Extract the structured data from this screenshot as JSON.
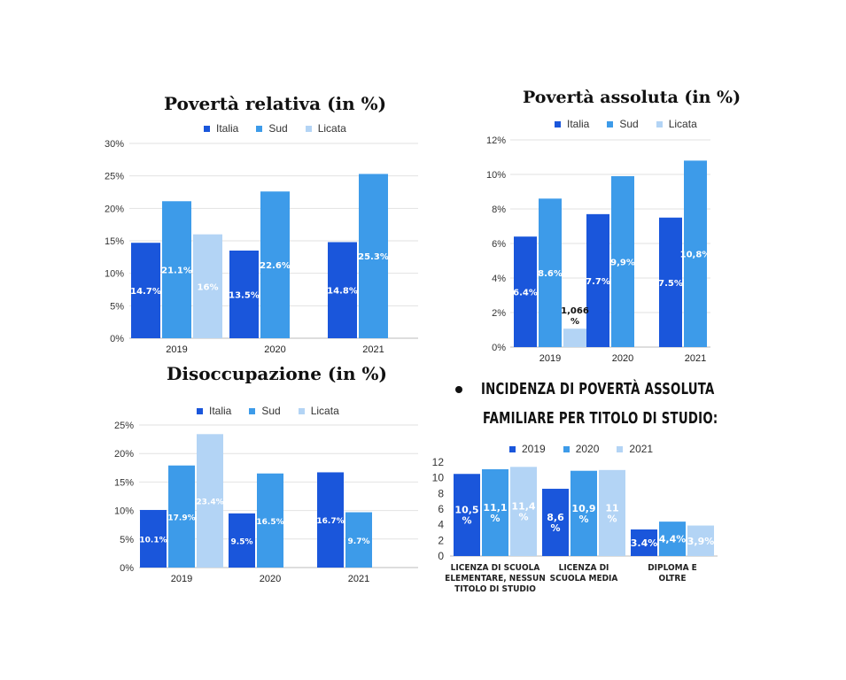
{
  "colors": {
    "italia": "#1a56db",
    "sud": "#3d9be9",
    "licata": "#b3d4f5",
    "grid": "#e2e2e2",
    "axis": "#bbbbbb",
    "label": "#ffffff"
  },
  "chart_data": [
    {
      "type": "bar",
      "title": "Povertà relativa (in %)",
      "categories": [
        "2019",
        "2020",
        "2021"
      ],
      "yticks": [
        "0%",
        "5%",
        "10%",
        "15%",
        "20%",
        "25%",
        "30%"
      ],
      "ylim": [
        0,
        30
      ],
      "legend_position": "top-center",
      "grid": true,
      "series": [
        {
          "name": "Italia",
          "color": "#1a56db",
          "values": [
            14.7,
            13.5,
            14.8
          ],
          "labels": [
            "14.7%",
            "13.5%",
            "14.8%"
          ]
        },
        {
          "name": "Sud",
          "color": "#3d9be9",
          "values": [
            21.1,
            22.6,
            25.3
          ],
          "labels": [
            "21.1%",
            "22.6%",
            "25.3%"
          ]
        },
        {
          "name": "Licata",
          "color": "#b3d4f5",
          "values": [
            16,
            null,
            null
          ],
          "labels": [
            "16%",
            "",
            ""
          ]
        }
      ]
    },
    {
      "type": "bar",
      "title": "Povertà assoluta (in %)",
      "categories": [
        "2019",
        "2020",
        "2021"
      ],
      "yticks": [
        "0%",
        "2%",
        "4%",
        "6%",
        "8%",
        "10%",
        "12%"
      ],
      "ylim": [
        0,
        12
      ],
      "legend_position": "top-center",
      "grid": true,
      "series": [
        {
          "name": "Italia",
          "color": "#1a56db",
          "values": [
            6.4,
            7.7,
            7.5
          ],
          "labels": [
            "6.4%",
            "7.7%",
            "7.5%"
          ]
        },
        {
          "name": "Sud",
          "color": "#3d9be9",
          "values": [
            8.6,
            9.9,
            10.8
          ],
          "labels": [
            "8.6%",
            "9,9%",
            "10,8%"
          ]
        },
        {
          "name": "Licata",
          "color": "#b3d4f5",
          "values": [
            1.066,
            null,
            null
          ],
          "labels": [
            "1,066 %",
            "",
            ""
          ]
        }
      ]
    },
    {
      "type": "bar",
      "title": "Disoccupazione (in %)",
      "categories": [
        "2019",
        "2020",
        "2021"
      ],
      "yticks": [
        "0%",
        "5%",
        "10%",
        "15%",
        "20%",
        "25%"
      ],
      "ylim": [
        0,
        25
      ],
      "legend_position": "top-center",
      "grid": true,
      "series": [
        {
          "name": "Italia",
          "color": "#1a56db",
          "values": [
            10.1,
            9.5,
            16.7
          ],
          "labels": [
            "10.1%",
            "9.5%",
            "16.7%"
          ]
        },
        {
          "name": "Sud",
          "color": "#3d9be9",
          "values": [
            17.9,
            16.5,
            9.7
          ],
          "labels": [
            "17.9%",
            "16.5%",
            "9.7%"
          ]
        },
        {
          "name": "Licata",
          "color": "#b3d4f5",
          "values": [
            23.4,
            null,
            null
          ],
          "labels": [
            "23.4%",
            "",
            ""
          ]
        }
      ]
    },
    {
      "type": "bar",
      "title": "INCIDENZA DI POVERTÀ ASSOLUTA FAMILIARE PER TITOLO DI STUDIO:",
      "title_lines": [
        "INCIDENZA DI POVERTÀ ASSOLUTA",
        "FAMILIARE PER TITOLO DI STUDIO:"
      ],
      "categories": [
        "LICENZA DI SCUOLA ELEMENTARE, NESSUN TITOLO DI STUDIO",
        "LICENZA DI SCUOLA MEDIA",
        "DIPLOMA E OLTRE"
      ],
      "category_lines": [
        [
          "LICENZA DI SCUOLA",
          "ELEMENTARE, NESSUN",
          "TITOLO DI STUDIO"
        ],
        [
          "LICENZA DI",
          "SCUOLA MEDIA"
        ],
        [
          "DIPLOMA E",
          "OLTRE"
        ]
      ],
      "yticks": [
        "0",
        "2",
        "4",
        "6",
        "8",
        "10",
        "12"
      ],
      "ylim": [
        0,
        12
      ],
      "legend_position": "top-center",
      "grid": false,
      "series": [
        {
          "name": "2019",
          "color": "#1a56db",
          "values": [
            10.5,
            8.6,
            3.4
          ],
          "labels": [
            "10,5 %",
            "8,6 %",
            "3.4%"
          ]
        },
        {
          "name": "2020",
          "color": "#3d9be9",
          "values": [
            11.1,
            10.9,
            4.4
          ],
          "labels": [
            "11,1 %",
            "10,9 %",
            "4,4%"
          ]
        },
        {
          "name": "2021",
          "color": "#b3d4f5",
          "values": [
            11.4,
            11,
            3.9
          ],
          "labels": [
            "11,4 %",
            "11 %",
            "3,9%"
          ]
        }
      ]
    }
  ]
}
